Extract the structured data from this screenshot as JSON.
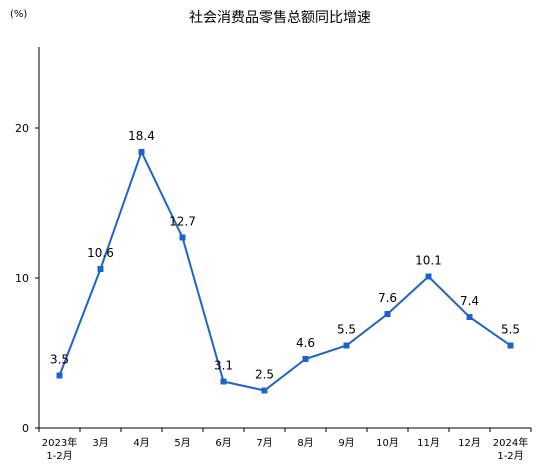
{
  "chart_data": {
    "type": "line",
    "title": "社会消费品零售总额同比增速",
    "unit": "(%)",
    "xlabel": "",
    "ylabel": "",
    "categories": [
      [
        "2023年",
        "1-2月"
      ],
      [
        "3月"
      ],
      [
        "4月"
      ],
      [
        "5月"
      ],
      [
        "6月"
      ],
      [
        "7月"
      ],
      [
        "8月"
      ],
      [
        "9月"
      ],
      [
        "10月"
      ],
      [
        "11月"
      ],
      [
        "12月"
      ],
      [
        "2024年",
        "1-2月"
      ]
    ],
    "series": [
      {
        "values": [
          3.5,
          10.6,
          18.4,
          12.7,
          3.1,
          2.5,
          4.6,
          5.5,
          7.6,
          10.1,
          7.4,
          5.5
        ],
        "labels": [
          "3.5",
          "10.6",
          "18.4",
          "12.7",
          "3.1",
          "2.5",
          "4.6",
          "5.5",
          "7.6",
          "10.1",
          "7.4",
          "5.5"
        ]
      }
    ],
    "ylim": [
      0,
      20
    ],
    "yticks": [
      "0",
      "10",
      "20"
    ],
    "grid": false,
    "legend": "none",
    "colors": {
      "line": "#1e64c8",
      "axis": "#000000"
    }
  }
}
